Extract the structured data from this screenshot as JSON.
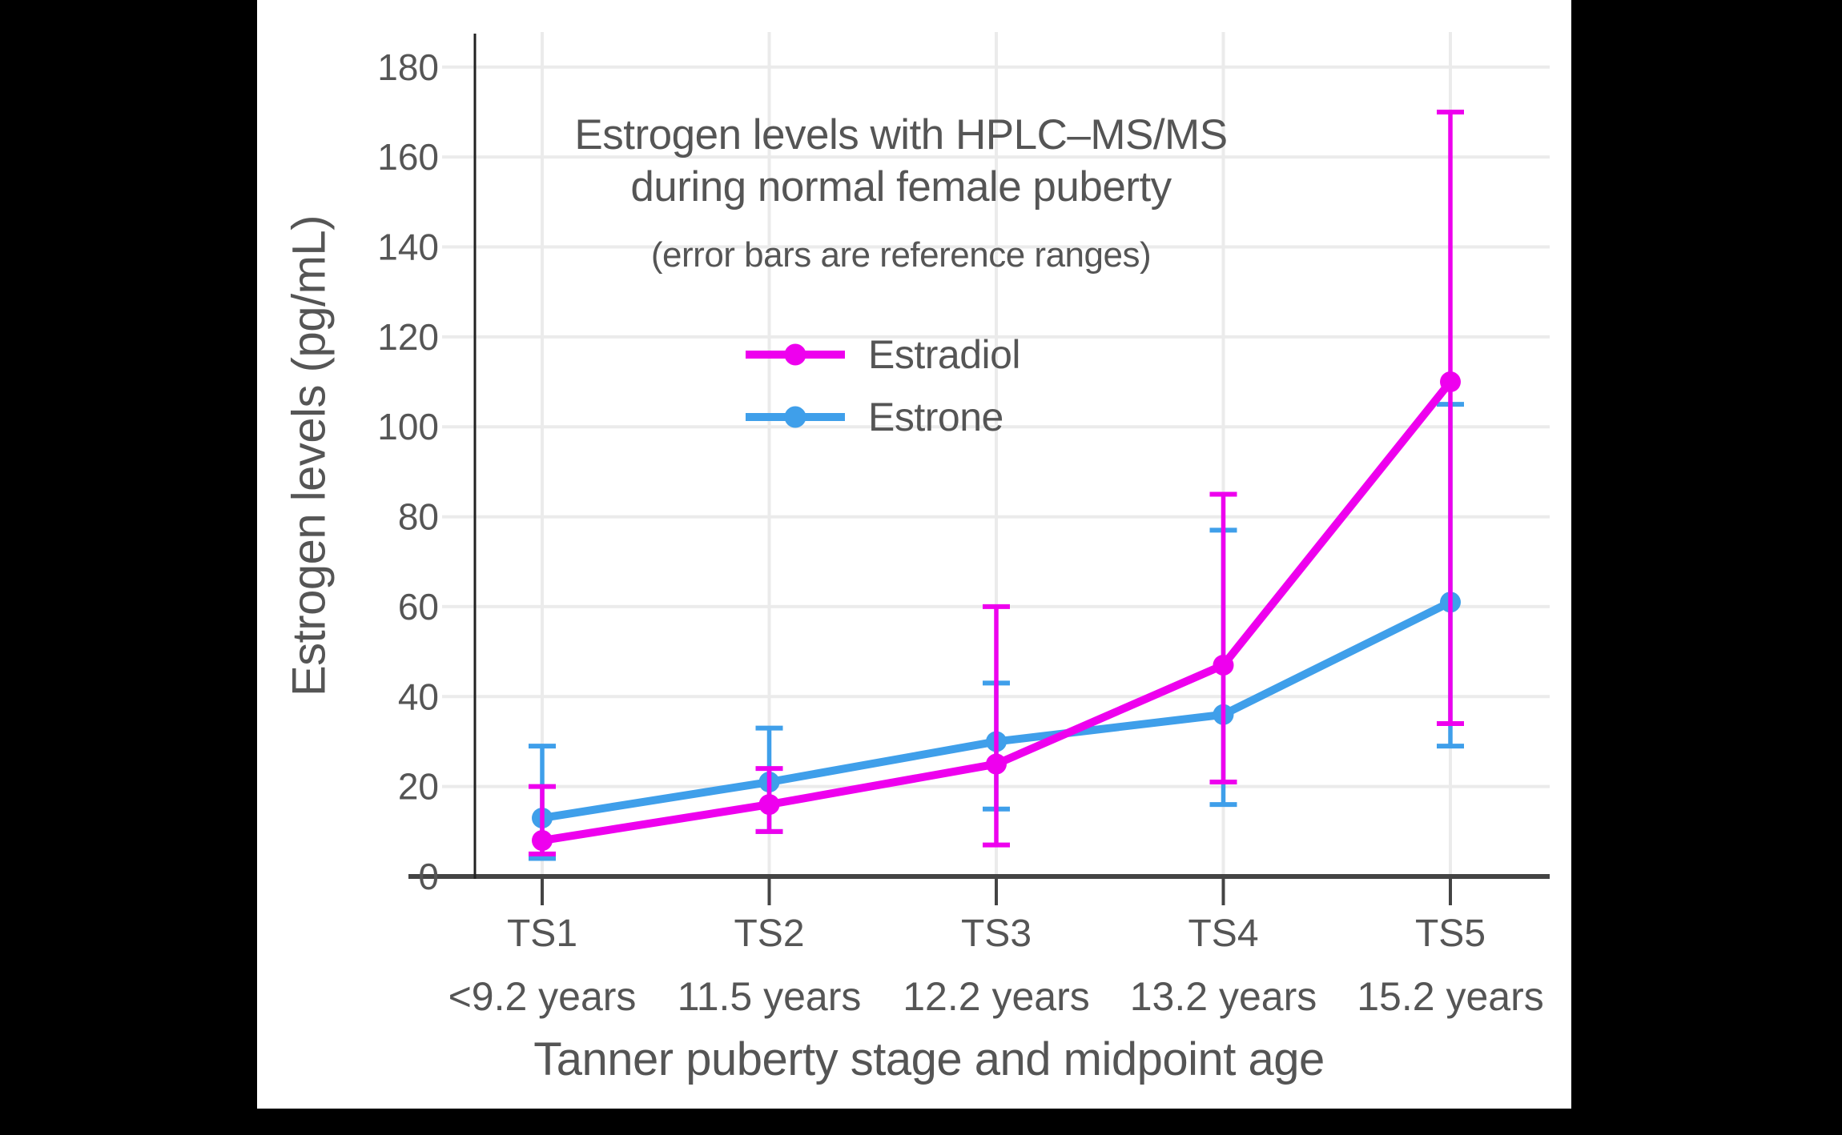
{
  "page": {
    "background": "#000000",
    "panel_background": "#ffffff",
    "text_color": "#555555",
    "grid_color": "#EBEBEB",
    "x_axis_color": "#444444",
    "y_axis_color": "#222222"
  },
  "chart_data": {
    "type": "line",
    "title": "Estrogen levels with HPLC–MS/MS",
    "title_line2": "during normal female puberty",
    "subtitle": "(error bars are reference ranges)",
    "xlabel": "Tanner puberty stage and midpoint age",
    "ylabel": "Estrogen levels (pg/mL)",
    "categories": [
      "TS1",
      "TS2",
      "TS3",
      "TS4",
      "TS5"
    ],
    "category_ages": [
      "<9.2 years",
      "11.5 years",
      "12.2 years",
      "13.2 years",
      "15.2 years"
    ],
    "y_ticks": [
      0,
      20,
      40,
      60,
      80,
      100,
      120,
      140,
      160,
      180
    ],
    "ylim": [
      0,
      187
    ],
    "grid": true,
    "legend_position": "inside-upper-center",
    "error_bar_meaning": "reference ranges",
    "series": [
      {
        "name": "Estrone",
        "color": "#3F9FEA",
        "values": [
          13,
          21,
          30,
          36,
          61
        ],
        "range_low": [
          4,
          10,
          15,
          16,
          29
        ],
        "range_high": [
          29,
          33,
          43,
          77,
          105
        ]
      },
      {
        "name": "Estradiol",
        "color": "#EE00EE",
        "values": [
          8,
          16,
          25,
          47,
          110
        ],
        "range_low": [
          5,
          10,
          7,
          21,
          34
        ],
        "range_high": [
          20,
          24,
          60,
          85,
          170
        ]
      }
    ]
  },
  "legend": {
    "items": [
      {
        "label": "Estradiol",
        "series": "Estradiol"
      },
      {
        "label": "Estrone",
        "series": "Estrone"
      }
    ]
  }
}
